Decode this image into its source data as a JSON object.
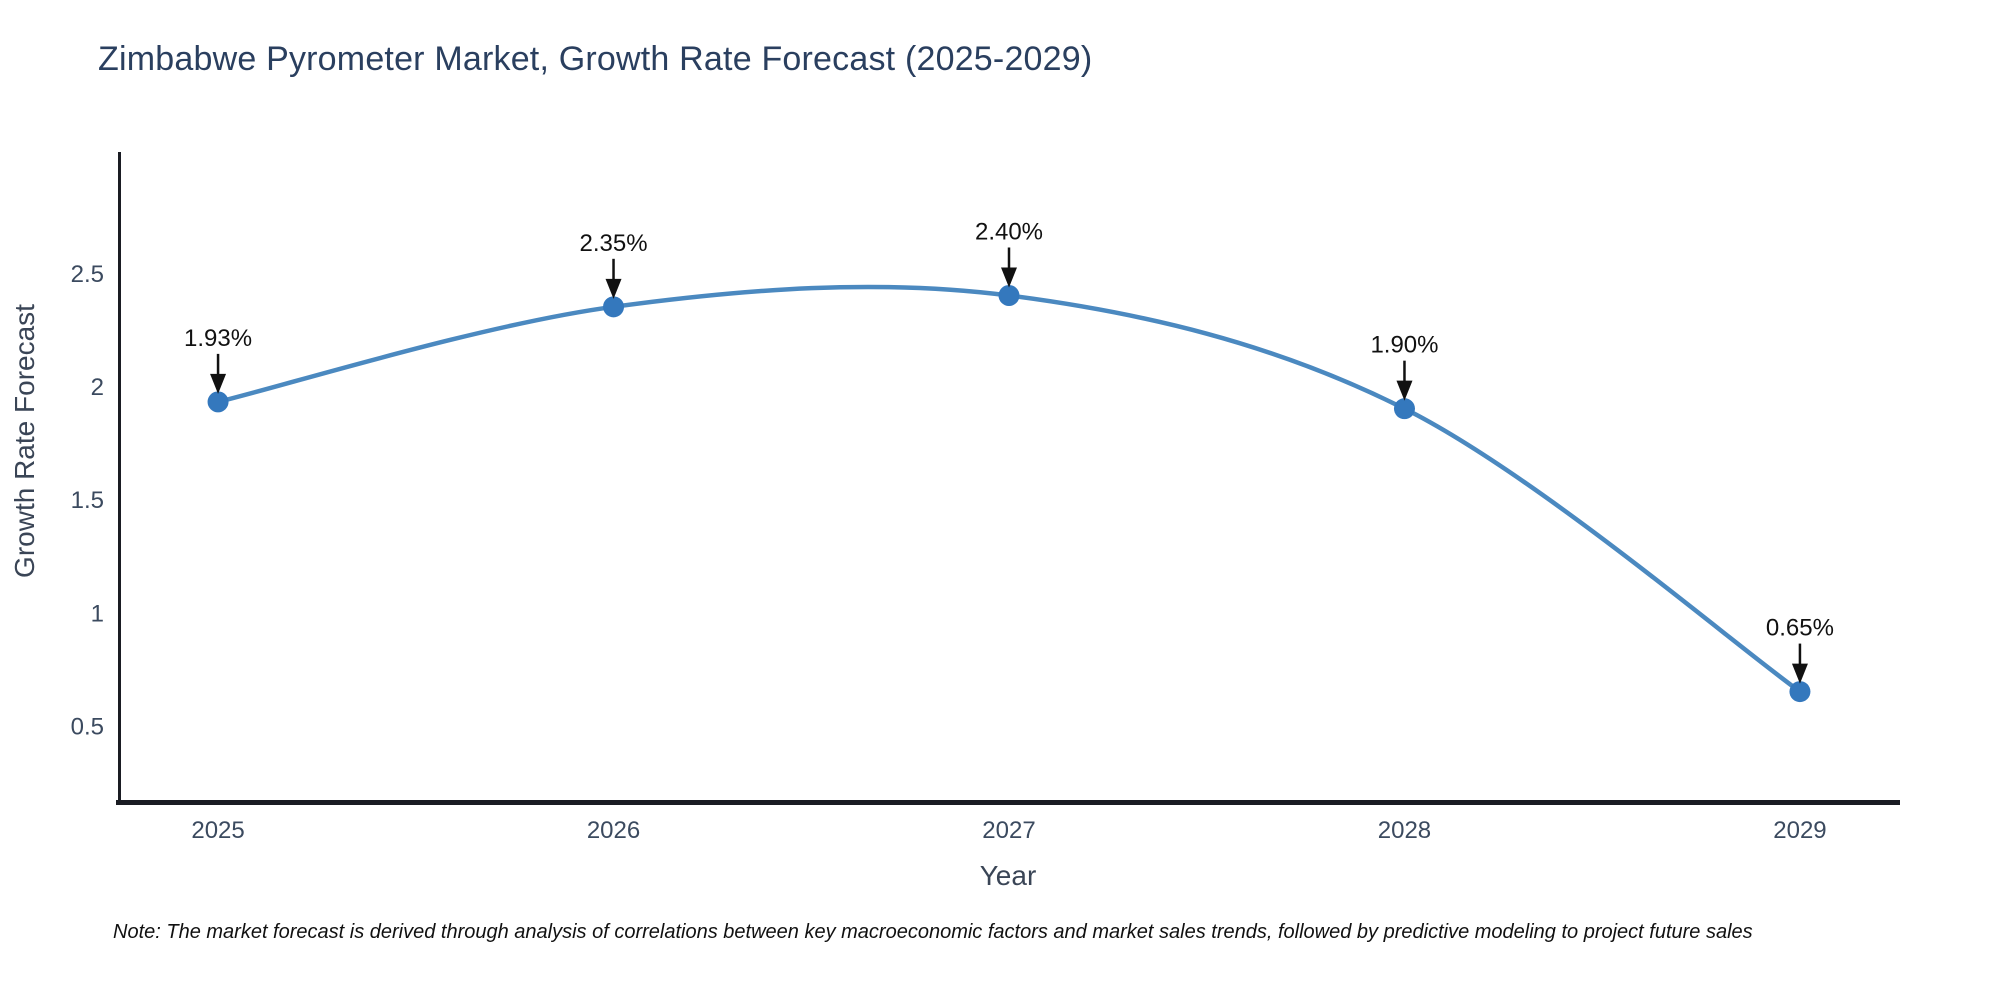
{
  "chart": {
    "title": "Zimbabwe Pyrometer Market, Growth Rate Forecast (2025-2029)"
  },
  "chart_data": {
    "type": "line",
    "line_shape": "spline",
    "title": "Zimbabwe Pyrometer Market, Growth Rate Forecast (2025-2029)",
    "xlabel": "Year",
    "ylabel": "Growth Rate Forecast",
    "x": [
      2025,
      2026,
      2027,
      2028,
      2029
    ],
    "values": [
      1.93,
      2.35,
      2.4,
      1.9,
      0.65
    ],
    "point_labels": [
      "1.93%",
      "2.35%",
      "2.40%",
      "1.90%",
      "0.65%"
    ],
    "xtick_labels": [
      "2025",
      "2026",
      "2027",
      "2028",
      "2029"
    ],
    "yticks": [
      0.5,
      1,
      1.5,
      2,
      2.5
    ],
    "ytick_labels": [
      "0.5",
      "1",
      "1.5",
      "2",
      "2.5"
    ],
    "x_range": [
      2024.747,
      2029.253
    ],
    "y_range": [
      0.171,
      3.034
    ],
    "grid": false,
    "legend_position": "none",
    "colors": {
      "line": "#4b89c0",
      "marker": "#3478bd",
      "axis": "#1a1c23",
      "title_text": "#2a3f5f",
      "tick_text": "#3b4a5f",
      "annotation": "#111111"
    }
  },
  "note": {
    "text": "Note: The market forecast is derived through analysis of correlations between key macroeconomic factors and market sales trends, followed by predictive modeling to project future sales"
  }
}
